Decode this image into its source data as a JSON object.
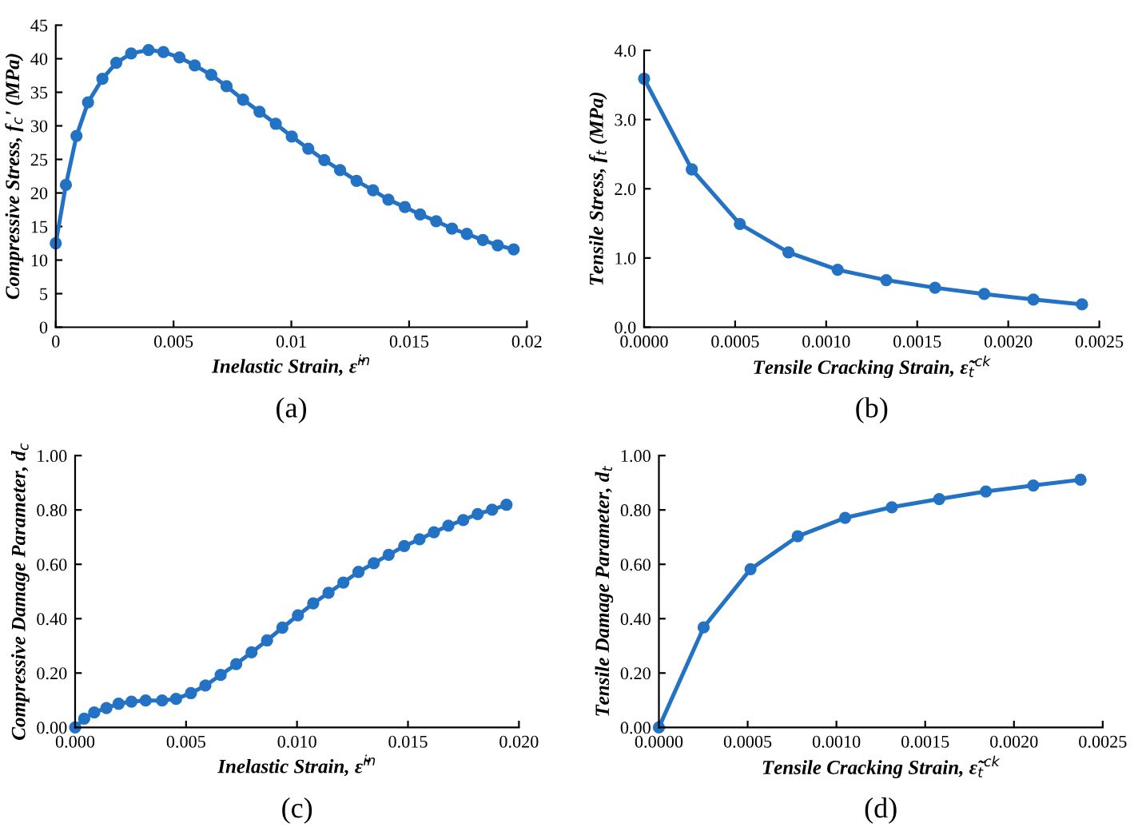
{
  "chart_data": [
    {
      "type": "line",
      "title": "(a)",
      "xlabel": "Inelastic Strain, ε̃$^{in}$",
      "ylabel": "Compressive Stress, f$_{c}$' (MPa)",
      "marker": "circle",
      "line_style": "solid",
      "x": [
        0,
        0.00043,
        0.00088,
        0.00137,
        0.00198,
        0.00257,
        0.0032,
        0.00394,
        0.00457,
        0.00525,
        0.0059,
        0.0066,
        0.00725,
        0.00795,
        0.00865,
        0.00934,
        0.01002,
        0.01072,
        0.0114,
        0.01207,
        0.01277,
        0.01347,
        0.01412,
        0.01482,
        0.01547,
        0.01615,
        0.01682,
        0.01745,
        0.01813,
        0.01876,
        0.01944
      ],
      "series": [
        {
          "color": "#2372c4",
          "values": [
            12.5,
            21.2,
            28.5,
            33.5,
            37.0,
            39.4,
            40.8,
            41.3,
            41.0,
            40.2,
            39.0,
            37.6,
            35.9,
            33.9,
            32.1,
            30.3,
            28.4,
            26.6,
            24.9,
            23.4,
            21.8,
            20.4,
            19.0,
            17.9,
            16.8,
            15.8,
            14.7,
            13.9,
            13.0,
            12.2,
            11.6
          ]
        }
      ],
      "xlim": [
        0,
        0.02
      ],
      "ylim": [
        0,
        45
      ],
      "xticks": [
        0,
        0.005,
        0.01,
        0.015,
        0.02
      ],
      "yticks": [
        0,
        5,
        10,
        15,
        20,
        25,
        30,
        35,
        40,
        45
      ]
    },
    {
      "type": "line",
      "title": "(b)",
      "xlabel": "Tensile Cracking Strain, ε̃$_{t}$$^{ck}$",
      "ylabel": "Tensile Stress, f$_{t}$ (MPa)",
      "marker": "circle",
      "line_style": "solid",
      "x": [
        0,
        0.000262,
        0.000526,
        0.000793,
        0.001063,
        0.00133,
        0.001598,
        0.001868,
        0.002138,
        0.002405
      ],
      "series": [
        {
          "color": "#2372c4",
          "values": [
            3.59,
            2.28,
            1.49,
            1.08,
            0.83,
            0.68,
            0.57,
            0.48,
            0.4,
            0.33
          ]
        }
      ],
      "xlim": [
        0,
        0.0025
      ],
      "ylim": [
        0,
        4.0
      ],
      "xticks": [
        {
          "value": 0,
          "label": "0.0000"
        },
        {
          "value": 0.0005,
          "label": "0.0005"
        },
        {
          "value": 0.001,
          "label": "0.0010"
        },
        {
          "value": 0.0015,
          "label": "0.0015"
        },
        {
          "value": 0.002,
          "label": "0.0020"
        },
        {
          "value": 0.0025,
          "label": "0.0025"
        }
      ],
      "yticks": [
        {
          "value": 0,
          "label": "0.0"
        },
        {
          "value": 1,
          "label": "1.0"
        },
        {
          "value": 2,
          "label": "2.0"
        },
        {
          "value": 3,
          "label": "3.0"
        },
        {
          "value": 4,
          "label": "4.0"
        }
      ]
    },
    {
      "type": "line",
      "title": "(c)",
      "xlabel": "Inelastic Strain, ε̃$^{in}$",
      "ylabel": "Compressive Damage Parameter, d$_{c}$",
      "marker": "circle",
      "line_style": "solid",
      "x": [
        0,
        0.00041,
        0.00086,
        0.00141,
        0.00196,
        0.00254,
        0.00318,
        0.00392,
        0.00455,
        0.00522,
        0.00587,
        0.00656,
        0.00726,
        0.00795,
        0.00865,
        0.00934,
        0.01004,
        0.01073,
        0.01142,
        0.01209,
        0.01277,
        0.01346,
        0.01413,
        0.01483,
        0.01552,
        0.01617,
        0.01682,
        0.01749,
        0.01814,
        0.01879,
        0.01944
      ],
      "series": [
        {
          "color": "#2372c4",
          "values": [
            0,
            0.032,
            0.055,
            0.071,
            0.087,
            0.095,
            0.099,
            0.099,
            0.105,
            0.126,
            0.154,
            0.193,
            0.233,
            0.276,
            0.32,
            0.367,
            0.412,
            0.456,
            0.495,
            0.533,
            0.572,
            0.604,
            0.635,
            0.667,
            0.692,
            0.718,
            0.742,
            0.763,
            0.785,
            0.801,
            0.819
          ]
        }
      ],
      "xlim": [
        0,
        0.02
      ],
      "ylim": [
        0,
        1.0
      ],
      "xticks": [
        {
          "value": 0,
          "label": "0.000"
        },
        {
          "value": 0.005,
          "label": "0.005"
        },
        {
          "value": 0.01,
          "label": "0.010"
        },
        {
          "value": 0.015,
          "label": "0.015"
        },
        {
          "value": 0.02,
          "label": "0.020"
        }
      ],
      "yticks": [
        {
          "value": 0,
          "label": "0.00"
        },
        {
          "value": 0.2,
          "label": "0.20"
        },
        {
          "value": 0.4,
          "label": "0.40"
        },
        {
          "value": 0.6,
          "label": "0.60"
        },
        {
          "value": 0.8,
          "label": "0.80"
        },
        {
          "value": 1.0,
          "label": "1.00"
        }
      ]
    },
    {
      "type": "line",
      "title": "(d)",
      "xlabel": "Tensile Cracking Strain, ε̃$_{t}$$^{ck}$",
      "ylabel": "Tensile Damage Parameter, d$_{t}$",
      "marker": "circle",
      "line_style": "solid",
      "x": [
        0,
        0.000252,
        0.000516,
        0.000782,
        0.001049,
        0.001312,
        0.001579,
        0.001842,
        0.002109,
        0.002375
      ],
      "series": [
        {
          "color": "#2372c4",
          "values": [
            0,
            0.368,
            0.582,
            0.703,
            0.771,
            0.81,
            0.84,
            0.868,
            0.89,
            0.911
          ]
        }
      ],
      "xlim": [
        0,
        0.0025
      ],
      "ylim": [
        0,
        1.0
      ],
      "xticks": [
        {
          "value": 0,
          "label": "0.0000"
        },
        {
          "value": 0.0005,
          "label": "0.0005"
        },
        {
          "value": 0.001,
          "label": "0.0010"
        },
        {
          "value": 0.0015,
          "label": "0.0015"
        },
        {
          "value": 0.002,
          "label": "0.0020"
        },
        {
          "value": 0.0025,
          "label": "0.0025"
        }
      ],
      "yticks": [
        {
          "value": 0,
          "label": "0.00"
        },
        {
          "value": 0.2,
          "label": "0.20"
        },
        {
          "value": 0.4,
          "label": "0.40"
        },
        {
          "value": 0.6,
          "label": "0.60"
        },
        {
          "value": 0.8,
          "label": "0.80"
        },
        {
          "value": 1.0,
          "label": "1.00"
        }
      ]
    }
  ]
}
